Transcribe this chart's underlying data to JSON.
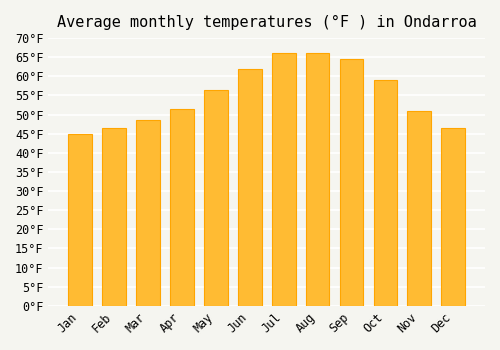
{
  "title": "Average monthly temperatures (°F ) in Ondarroa",
  "months": [
    "Jan",
    "Feb",
    "Mar",
    "Apr",
    "May",
    "Jun",
    "Jul",
    "Aug",
    "Sep",
    "Oct",
    "Nov",
    "Dec"
  ],
  "values": [
    45,
    46.5,
    48.5,
    51.5,
    56.5,
    62,
    66,
    66,
    64.5,
    59,
    51,
    46.5
  ],
  "bar_color": "#FFBB33",
  "bar_edge_color": "#FFA500",
  "background_color": "#F5F5F0",
  "ylim": [
    0,
    70
  ],
  "yticks": [
    0,
    5,
    10,
    15,
    20,
    25,
    30,
    35,
    40,
    45,
    50,
    55,
    60,
    65,
    70
  ],
  "ylabel_suffix": "°F",
  "grid_color": "#FFFFFF",
  "title_fontsize": 11,
  "tick_fontsize": 8.5
}
